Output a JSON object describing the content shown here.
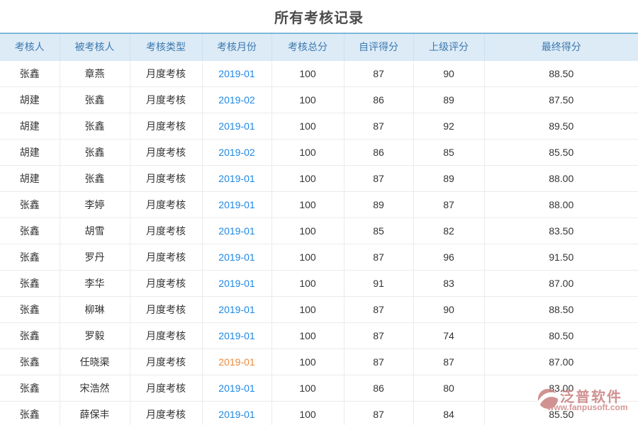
{
  "page": {
    "title": "所有考核记录"
  },
  "table": {
    "columns": [
      "考核人",
      "被考核人",
      "考核类型",
      "考核月份",
      "考核总分",
      "自评得分",
      "上级评分",
      "最终得分"
    ],
    "rows": [
      {
        "assessor": "张鑫",
        "assessee": "章燕",
        "type": "月度考核",
        "month": "2019-01",
        "total": "100",
        "self_score": "87",
        "superior_score": "90",
        "final_score": "88.50",
        "highlighted": false
      },
      {
        "assessor": "胡建",
        "assessee": "张鑫",
        "type": "月度考核",
        "month": "2019-02",
        "total": "100",
        "self_score": "86",
        "superior_score": "89",
        "final_score": "87.50",
        "highlighted": false
      },
      {
        "assessor": "胡建",
        "assessee": "张鑫",
        "type": "月度考核",
        "month": "2019-01",
        "total": "100",
        "self_score": "87",
        "superior_score": "92",
        "final_score": "89.50",
        "highlighted": false
      },
      {
        "assessor": "胡建",
        "assessee": "张鑫",
        "type": "月度考核",
        "month": "2019-02",
        "total": "100",
        "self_score": "86",
        "superior_score": "85",
        "final_score": "85.50",
        "highlighted": false
      },
      {
        "assessor": "胡建",
        "assessee": "张鑫",
        "type": "月度考核",
        "month": "2019-01",
        "total": "100",
        "self_score": "87",
        "superior_score": "89",
        "final_score": "88.00",
        "highlighted": false
      },
      {
        "assessor": "张鑫",
        "assessee": "李婷",
        "type": "月度考核",
        "month": "2019-01",
        "total": "100",
        "self_score": "89",
        "superior_score": "87",
        "final_score": "88.00",
        "highlighted": false
      },
      {
        "assessor": "张鑫",
        "assessee": "胡雪",
        "type": "月度考核",
        "month": "2019-01",
        "total": "100",
        "self_score": "85",
        "superior_score": "82",
        "final_score": "83.50",
        "highlighted": false
      },
      {
        "assessor": "张鑫",
        "assessee": "罗丹",
        "type": "月度考核",
        "month": "2019-01",
        "total": "100",
        "self_score": "87",
        "superior_score": "96",
        "final_score": "91.50",
        "highlighted": false
      },
      {
        "assessor": "张鑫",
        "assessee": "李华",
        "type": "月度考核",
        "month": "2019-01",
        "total": "100",
        "self_score": "91",
        "superior_score": "83",
        "final_score": "87.00",
        "highlighted": false
      },
      {
        "assessor": "张鑫",
        "assessee": "柳琳",
        "type": "月度考核",
        "month": "2019-01",
        "total": "100",
        "self_score": "87",
        "superior_score": "90",
        "final_score": "88.50",
        "highlighted": false
      },
      {
        "assessor": "张鑫",
        "assessee": "罗毅",
        "type": "月度考核",
        "month": "2019-01",
        "total": "100",
        "self_score": "87",
        "superior_score": "74",
        "final_score": "80.50",
        "highlighted": false
      },
      {
        "assessor": "张鑫",
        "assessee": "任晓渠",
        "type": "月度考核",
        "month": "2019-01",
        "total": "100",
        "self_score": "87",
        "superior_score": "87",
        "final_score": "87.00",
        "highlighted": true
      },
      {
        "assessor": "张鑫",
        "assessee": "宋浩然",
        "type": "月度考核",
        "month": "2019-01",
        "total": "100",
        "self_score": "86",
        "superior_score": "80",
        "final_score": "83.00",
        "highlighted": false
      },
      {
        "assessor": "张鑫",
        "assessee": "薛保丰",
        "type": "月度考核",
        "month": "2019-01",
        "total": "100",
        "self_score": "87",
        "superior_score": "84",
        "final_score": "85.50",
        "highlighted": false
      }
    ]
  },
  "watermark": {
    "brand": "泛普软件",
    "url": "www.fanpusoft.com"
  },
  "colors": {
    "link_blue": "#1e88e5",
    "header_text_blue": "#3c79ae",
    "header_bg": "#ddebf7",
    "highlight_row_bg": "#e9f5fd",
    "highlight_orange": "#ee8a3c",
    "watermark_pink": "#c97f7f"
  }
}
